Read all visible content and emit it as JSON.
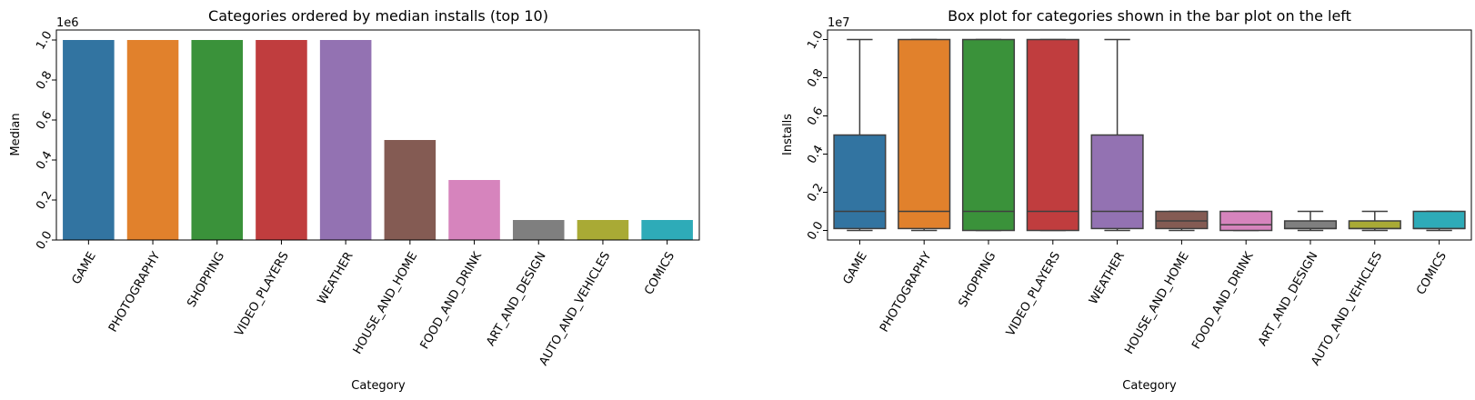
{
  "chart_data": [
    {
      "type": "bar",
      "title": "Categories ordered by median installs (top 10)",
      "xlabel": "Category",
      "ylabel": "Median",
      "offset_text": "1e6",
      "scale": 1000000,
      "ylim": [
        0,
        1050000
      ],
      "yticks": [
        0,
        200000,
        400000,
        600000,
        800000,
        1000000
      ],
      "ytick_labels": [
        "0.0",
        "0.2",
        "0.4",
        "0.6",
        "0.8",
        "1.0"
      ],
      "grid": false,
      "categories": [
        "GAME",
        "PHOTOGRAPHY",
        "SHOPPING",
        "VIDEO_PLAYERS",
        "WEATHER",
        "HOUSE_AND_HOME",
        "FOOD_AND_DRINK",
        "ART_AND_DESIGN",
        "AUTO_AND_VEHICLES",
        "COMICS"
      ],
      "values": [
        1000000,
        1000000,
        1000000,
        1000000,
        1000000,
        500000,
        300000,
        100000,
        100000,
        100000
      ]
    },
    {
      "type": "box",
      "title": "Box plot for categories shown in the bar plot on the left",
      "xlabel": "Category",
      "ylabel": "Installs",
      "offset_text": "1e7",
      "scale": 10000000,
      "ylim": [
        -500000,
        10500000
      ],
      "yticks": [
        0,
        2000000,
        4000000,
        6000000,
        8000000,
        10000000
      ],
      "ytick_labels": [
        "0.0",
        "0.2",
        "0.4",
        "0.6",
        "0.8",
        "1.0"
      ],
      "grid": false,
      "categories": [
        "GAME",
        "PHOTOGRAPHY",
        "SHOPPING",
        "VIDEO_PLAYERS",
        "WEATHER",
        "HOUSE_AND_HOME",
        "FOOD_AND_DRINK",
        "ART_AND_DESIGN",
        "AUTO_AND_VEHICLES",
        "COMICS"
      ],
      "boxes": [
        {
          "whislo": 0,
          "q1": 100000,
          "med": 1000000,
          "q3": 5000000,
          "whishi": 10000000
        },
        {
          "whislo": 0,
          "q1": 100000,
          "med": 1000000,
          "q3": 10000000,
          "whishi": 10000000
        },
        {
          "whislo": 0,
          "q1": 0,
          "med": 1000000,
          "q3": 10000000,
          "whishi": 10000000
        },
        {
          "whislo": 0,
          "q1": 0,
          "med": 1000000,
          "q3": 10000000,
          "whishi": 10000000
        },
        {
          "whislo": 0,
          "q1": 100000,
          "med": 1000000,
          "q3": 5000000,
          "whishi": 10000000
        },
        {
          "whislo": 0,
          "q1": 100000,
          "med": 500000,
          "q3": 1000000,
          "whishi": 1000000
        },
        {
          "whislo": 0,
          "q1": 0,
          "med": 300000,
          "q3": 1000000,
          "whishi": 1000000
        },
        {
          "whislo": 0,
          "q1": 100000,
          "med": 100000,
          "q3": 500000,
          "whishi": 1000000
        },
        {
          "whislo": 0,
          "q1": 100000,
          "med": 100000,
          "q3": 500000,
          "whishi": 1000000
        },
        {
          "whislo": 0,
          "q1": 100000,
          "med": 100000,
          "q3": 1000000,
          "whishi": 1000000
        }
      ]
    }
  ],
  "colors": [
    "#3274a1",
    "#e1812c",
    "#3a923a",
    "#c03d3e",
    "#9372b2",
    "#845b53",
    "#d684bd",
    "#7f7f7f",
    "#a9aa35",
    "#2eabb8"
  ],
  "box_edge_color": "#3f3f3f"
}
